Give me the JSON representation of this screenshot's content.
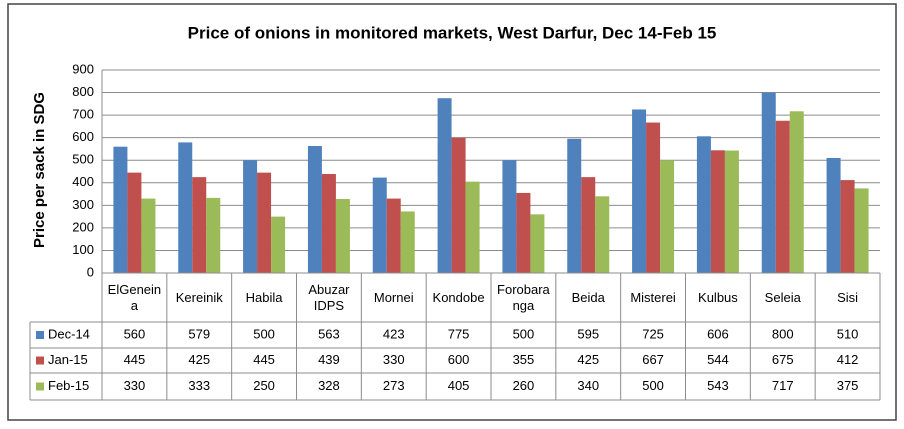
{
  "chart_data": {
    "type": "bar",
    "title": "Price of onions in monitored markets, West Darfur, Dec 14-Feb 15",
    "y_label": "Price per sack in SDG",
    "categories": [
      "ElGeneina",
      "Kereinik",
      "Habila",
      "Abuzar IDPS",
      "Mornei",
      "Kondobe",
      "Forobaranga",
      "Beida",
      "Misterei",
      "Kulbus",
      "Seleia",
      "Sisi"
    ],
    "series": [
      {
        "name": "Dec-14",
        "color": "#4f81bd",
        "values": [
          560,
          579,
          500,
          563,
          423,
          775,
          500,
          595,
          725,
          606,
          800,
          510
        ]
      },
      {
        "name": "Jan-15",
        "color": "#c0504d",
        "values": [
          445,
          425,
          445,
          439,
          330,
          600,
          355,
          425,
          667,
          544,
          675,
          412
        ]
      },
      {
        "name": "Feb-15",
        "color": "#9bbb59",
        "values": [
          330,
          333,
          250,
          328,
          273,
          405,
          260,
          340,
          500,
          543,
          717,
          375
        ]
      }
    ],
    "ylim": [
      0,
      900
    ],
    "yticks": [
      0,
      100,
      200,
      300,
      400,
      500,
      600,
      700,
      800,
      900
    ],
    "grid": true
  }
}
